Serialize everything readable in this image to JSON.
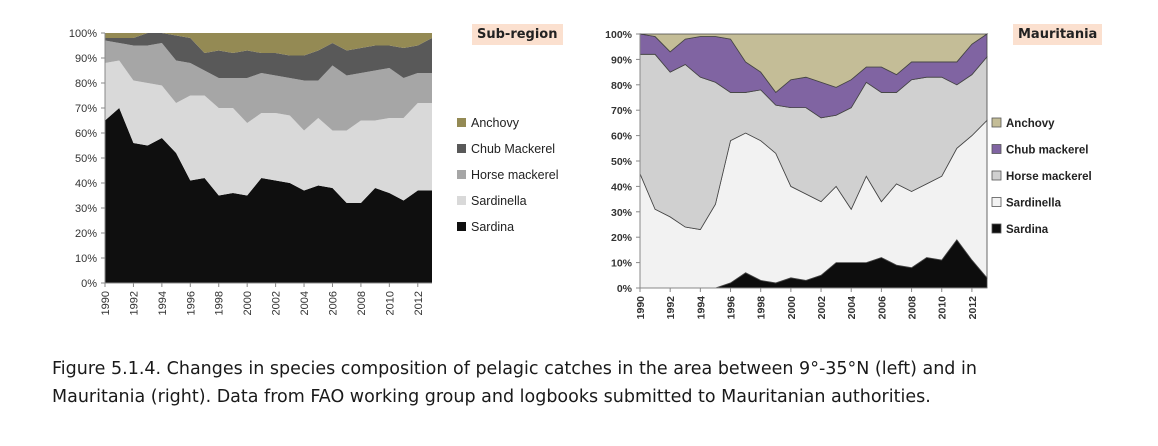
{
  "chart_data": [
    {
      "type": "area",
      "stacked": true,
      "normalized": true,
      "title": "Sub-region",
      "legend_position": "right",
      "years": [
        1990,
        1991,
        1992,
        1993,
        1994,
        1995,
        1996,
        1997,
        1998,
        1999,
        2000,
        2001,
        2002,
        2003,
        2004,
        2005,
        2006,
        2007,
        2008,
        2009,
        2010,
        2011,
        2012,
        2013
      ],
      "x_tick_labels": [
        "1990",
        "1992",
        "1994",
        "1996",
        "1998",
        "2000",
        "2002",
        "2004",
        "2006",
        "2008",
        "2010",
        "2012"
      ],
      "y_tick_labels": [
        "0%",
        "10%",
        "20%",
        "30%",
        "40%",
        "50%",
        "60%",
        "70%",
        "80%",
        "90%",
        "100%"
      ],
      "ylim": [
        0,
        100
      ],
      "series": [
        {
          "name": "Sardina",
          "color": "#0f0f0f",
          "values": [
            65,
            70,
            56,
            55,
            58,
            52,
            41,
            42,
            35,
            36,
            35,
            42,
            41,
            40,
            37,
            39,
            38,
            32,
            32,
            38,
            36,
            33,
            37,
            37
          ]
        },
        {
          "name": "Sardinella",
          "color": "#d9d9d9",
          "values": [
            23,
            19,
            25,
            25,
            21,
            20,
            34,
            33,
            35,
            34,
            29,
            26,
            27,
            27,
            24,
            27,
            23,
            29,
            33,
            27,
            30,
            33,
            35,
            35
          ]
        },
        {
          "name": "Horse mackerel",
          "color": "#a6a6a6",
          "values": [
            9,
            7,
            14,
            15,
            17,
            17,
            13,
            10,
            12,
            12,
            18,
            16,
            15,
            15,
            20,
            15,
            26,
            22,
            19,
            20,
            20,
            16,
            12,
            12
          ]
        },
        {
          "name": "Chub Mackerel",
          "color": "#595959",
          "values": [
            1,
            2,
            3,
            5,
            4,
            10,
            10,
            7,
            11,
            10,
            11,
            8,
            9,
            9,
            10,
            12,
            9,
            10,
            10,
            10,
            9,
            12,
            11,
            14
          ]
        },
        {
          "name": "Anchovy",
          "color": "#948a54",
          "values": [
            2,
            2,
            2,
            0,
            0,
            1,
            2,
            8,
            7,
            8,
            7,
            8,
            8,
            9,
            9,
            7,
            4,
            7,
            6,
            5,
            5,
            6,
            5,
            2
          ]
        }
      ]
    },
    {
      "type": "area",
      "stacked": true,
      "normalized": true,
      "title": "Mauritania",
      "legend_position": "right",
      "years": [
        1990,
        1991,
        1992,
        1993,
        1994,
        1995,
        1996,
        1997,
        1998,
        1999,
        2000,
        2001,
        2002,
        2003,
        2004,
        2005,
        2006,
        2007,
        2008,
        2009,
        2010,
        2011,
        2012,
        2013
      ],
      "x_tick_labels": [
        "1990",
        "1992",
        "1994",
        "1996",
        "1998",
        "2000",
        "2002",
        "2004",
        "2006",
        "2008",
        "2010",
        "2012"
      ],
      "y_tick_labels": [
        "0%",
        "10%",
        "20%",
        "30%",
        "40%",
        "50%",
        "60%",
        "70%",
        "80%",
        "90%",
        "100%"
      ],
      "ylim": [
        0,
        100
      ],
      "series": [
        {
          "name": "Sardina",
          "color": "#0d0d0d",
          "values": [
            0,
            0,
            0,
            0,
            0,
            0,
            2,
            6,
            3,
            2,
            4,
            3,
            5,
            10,
            10,
            10,
            12,
            9,
            8,
            12,
            11,
            19,
            11,
            4
          ]
        },
        {
          "name": "Sardinella",
          "color": "#f2f2f2",
          "values": [
            45,
            31,
            28,
            24,
            23,
            33,
            56,
            55,
            55,
            51,
            36,
            34,
            29,
            30,
            21,
            34,
            22,
            32,
            30,
            29,
            33,
            36,
            49,
            62
          ]
        },
        {
          "name": "Horse mackerel",
          "color": "#d0d0d0",
          "values": [
            47,
            61,
            57,
            64,
            60,
            48,
            19,
            16,
            20,
            19,
            31,
            34,
            33,
            28,
            40,
            37,
            43,
            36,
            44,
            42,
            39,
            25,
            24,
            25
          ]
        },
        {
          "name": "Chub mackerel",
          "color": "#8064a2",
          "values": [
            8,
            7,
            8,
            10,
            16,
            18,
            21,
            12,
            7,
            5,
            11,
            12,
            14,
            11,
            11,
            6,
            10,
            7,
            7,
            6,
            6,
            9,
            12,
            9
          ]
        },
        {
          "name": "Anchovy",
          "color": "#c4bd97",
          "values": [
            0,
            1,
            7,
            2,
            1,
            1,
            2,
            11,
            15,
            23,
            18,
            17,
            19,
            21,
            18,
            13,
            13,
            16,
            11,
            11,
            11,
            11,
            4,
            0
          ]
        }
      ]
    }
  ],
  "caption": {
    "line1": "Figure 5.1.4. Changes in species composition of pelagic catches in the area between 9°-35°N (left) and in",
    "line2": "Mauritania (right). Data from FAO working group and logbooks submitted to Mauritanian authorities."
  }
}
